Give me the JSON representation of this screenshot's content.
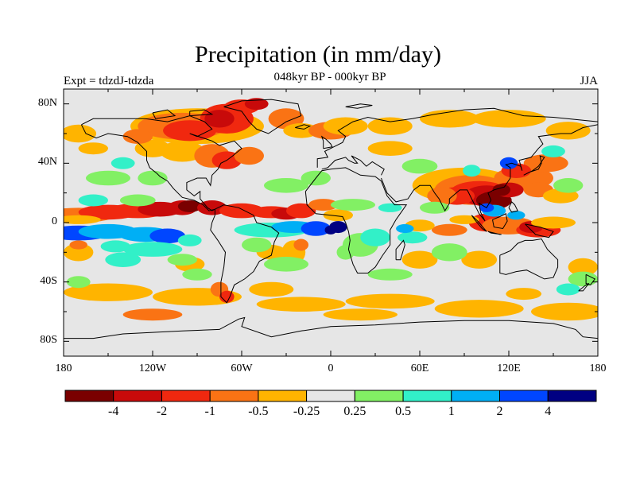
{
  "title": "Precipitation (in mm/day)",
  "subtitle": "048kyr BP - 000kyr BP",
  "left_label": "Expt = tdzdJ-tdzda",
  "right_label": "JJA",
  "chart_data": {
    "type": "heatmap",
    "title": "Precipitation (in mm/day)",
    "subtitle": "048kyr BP - 000kyr BP",
    "experiment": "Expt = tdzdJ-tdzda",
    "season": "JJA",
    "projection": "cylindrical equidistant",
    "xlim": [
      -180,
      180
    ],
    "ylim": [
      -90,
      90
    ],
    "x_ticks": [
      "180",
      "120W",
      "60W",
      "0",
      "60E",
      "120E",
      "180"
    ],
    "y_ticks": [
      "80N",
      "40N",
      "0",
      "40S",
      "80S"
    ],
    "colorbar": {
      "labels": [
        "-4",
        "-2",
        "-1",
        "-0.5",
        "-0.25",
        "0.25",
        "0.5",
        "1",
        "2",
        "4"
      ],
      "colors": [
        "#7a0000",
        "#c80a0a",
        "#f0280f",
        "#fa7314",
        "#ffb400",
        "#e6e6e6",
        "#82f064",
        "#32f0c8",
        "#00aff5",
        "#0046ff",
        "#000082"
      ]
    },
    "features": [
      {
        "region": "equatorial Pacific/Atlantic ITCZ",
        "lon": [
          -180,
          -20
        ],
        "lat": [
          2,
          12
        ],
        "level": "-4 to -1"
      },
      {
        "region": "North America / North Atlantic",
        "lon": [
          -130,
          -20
        ],
        "lat": [
          40,
          80
        ],
        "level": "-2 to -0.5"
      },
      {
        "region": "Tropical Pacific south of equator",
        "lon": [
          -170,
          -75
        ],
        "lat": [
          -12,
          -2
        ],
        "level": "0.5 to 2"
      },
      {
        "region": "Tropical Atlantic south of equator",
        "lon": [
          -50,
          10
        ],
        "lat": [
          -10,
          0
        ],
        "level": "1 to 4"
      },
      {
        "region": "South and East Asian monsoon",
        "lon": [
          65,
          150
        ],
        "lat": [
          5,
          40
        ],
        "level": "-4 to -1"
      },
      {
        "region": "Maritime continent / Indian Ocean",
        "lon": [
          70,
          150
        ],
        "lat": [
          -12,
          5
        ],
        "level": "-2 to -0.5"
      },
      {
        "region": "Southern Ocean storm track",
        "lon": [
          -180,
          180
        ],
        "lat": [
          -70,
          -45
        ],
        "level": "-0.5 to -0.25"
      }
    ]
  }
}
